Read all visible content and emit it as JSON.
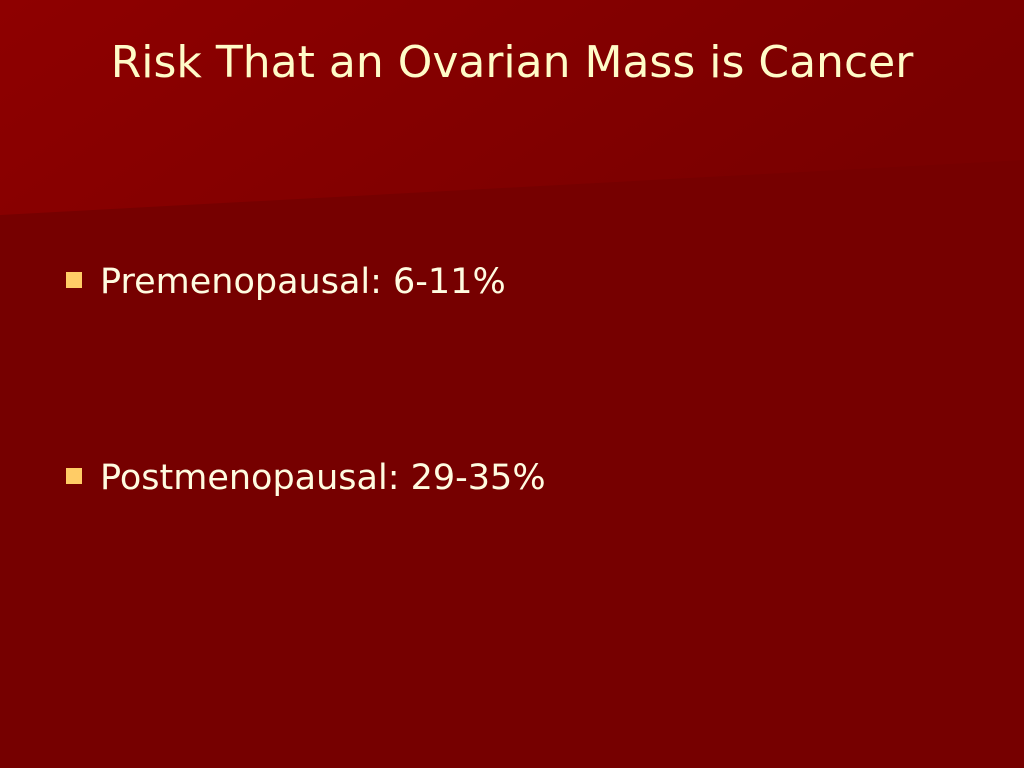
{
  "slide": {
    "title": "Risk That an Ovarian Mass is Cancer",
    "bullets": [
      "Premenopausal: 6-11%",
      "Postmenopausal: 29-35%"
    ]
  }
}
